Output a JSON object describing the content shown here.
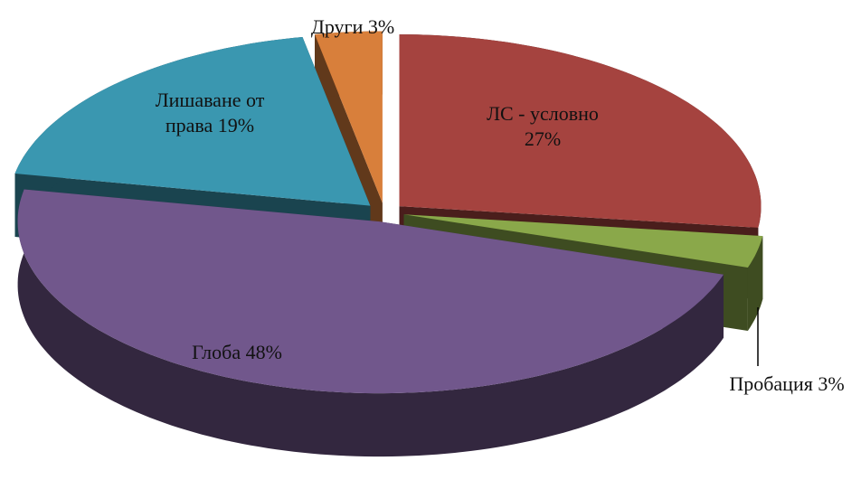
{
  "chart_data": {
    "type": "pie3d",
    "categories": [
      "ЛС - условно",
      "Пробация",
      "Глоба",
      "Лишаване от права",
      "Други"
    ],
    "values": [
      27,
      3,
      48,
      19,
      3
    ],
    "value_labels": [
      "27%",
      "3%",
      "48%",
      "19%",
      "3%"
    ],
    "colors": [
      "#a5433f",
      "#8aa84a",
      "#71578c",
      "#3a97b0",
      "#d87f3b"
    ]
  }
}
